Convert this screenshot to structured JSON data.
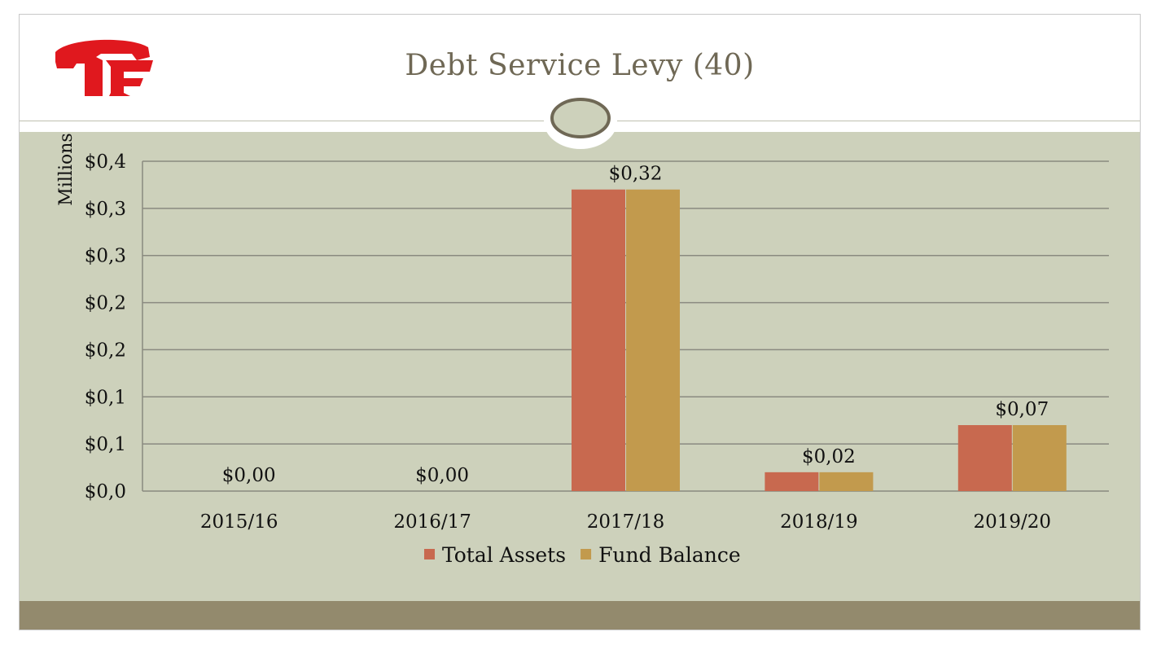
{
  "slide": {
    "title": "Debt Service Levy (40)"
  },
  "logo": {
    "name": "cf-monogram-logo",
    "color": "#e0181e"
  },
  "colors": {
    "panel": "#cdd1bb",
    "footer": "#938a6d",
    "title_text": "#6f6855",
    "series_1": "#c8694f",
    "series_2": "#c29a4d"
  },
  "chart_data": {
    "type": "bar",
    "categories": [
      "2015/16",
      "2016/17",
      "2017/18",
      "2018/19",
      "2019/20"
    ],
    "series": [
      {
        "name": "Total Assets",
        "values": [
          0,
          0,
          0.32,
          0.02,
          0.07
        ],
        "color": "#c8694f"
      },
      {
        "name": "Fund Balance",
        "values": [
          0,
          0,
          0.32,
          0.02,
          0.07
        ],
        "color": "#c29a4d"
      }
    ],
    "data_labels": [
      "$0,00",
      "$0,00",
      "$0,32",
      "$0,02",
      "$0,07"
    ],
    "ylabel": "Millions",
    "ylim": [
      0,
      0.35
    ],
    "yticks": [
      0,
      0.05,
      0.1,
      0.15,
      0.2,
      0.25,
      0.3,
      0.35
    ],
    "ytick_labels": [
      "$0,0",
      "$0,1",
      "$0,1",
      "$0,2",
      "$0,2",
      "$0,3",
      "$0,3",
      "$0,4"
    ],
    "grid": true,
    "legend": "bottom"
  }
}
